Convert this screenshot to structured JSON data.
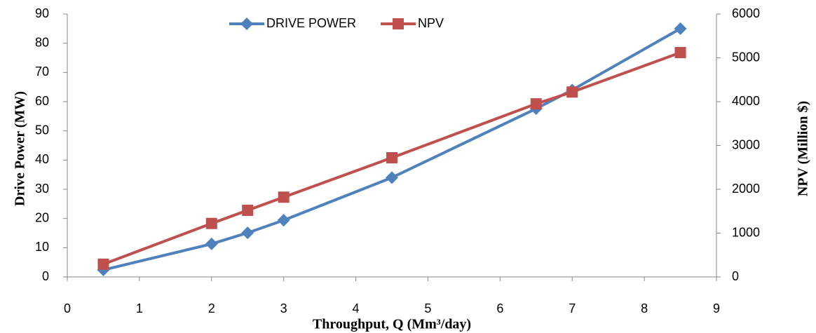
{
  "chart_data": {
    "type": "line",
    "x_label": "Throughput, Q (Mm³/day)",
    "y_label": "Drive Power (MW)",
    "y2_label": "NPV (Million $)",
    "xlim": [
      0,
      9
    ],
    "xticks": [
      0,
      1,
      2,
      3,
      4,
      5,
      6,
      7,
      8,
      9
    ],
    "ylim": [
      0,
      90
    ],
    "yticks": [
      0,
      10,
      20,
      30,
      40,
      50,
      60,
      70,
      80,
      90
    ],
    "y2lim": [
      0,
      6000
    ],
    "y2ticks": [
      0,
      1000,
      2000,
      3000,
      4000,
      5000,
      6000
    ],
    "grid": false,
    "legend": "top",
    "series": [
      {
        "name": "DRIVE POWER",
        "color": "#4f81bd",
        "marker": "diamond",
        "x": [
          0.5,
          2,
          2.5,
          3,
          4.5,
          6.5,
          7,
          8.5
        ],
        "values": [
          2.4,
          11.3,
          15.1,
          19.4,
          34,
          57.6,
          64,
          85
        ]
      },
      {
        "name": "NPV",
        "color": "#c0504d",
        "marker": "square",
        "axis": "y2",
        "x": [
          0.5,
          2,
          2.5,
          3,
          4.5,
          6.5,
          7,
          8.5
        ],
        "values": [
          290,
          1220,
          1520,
          1820,
          2720,
          3950,
          4220,
          5120
        ]
      }
    ]
  }
}
